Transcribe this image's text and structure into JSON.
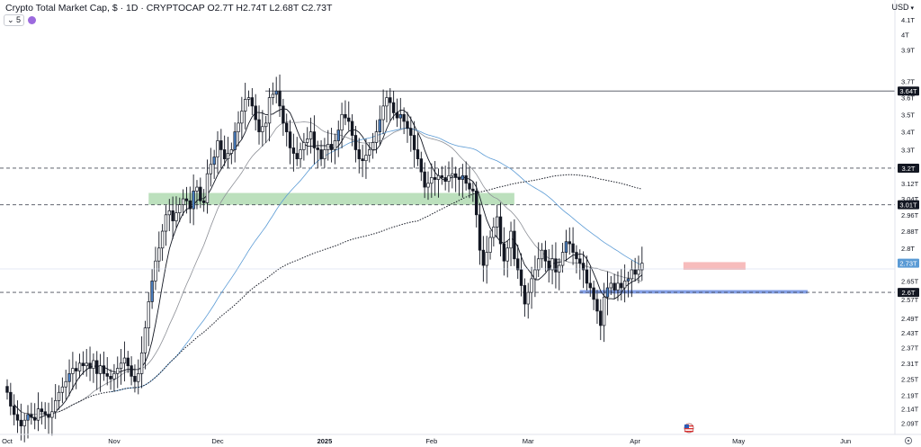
{
  "header": {
    "title": "Crypto Total Market Cap, $ · 1D · CRYPTOCAP",
    "ohlc": "O2.7T H2.74T L2.68T C2.73T"
  },
  "indicator_badge": {
    "label": "5"
  },
  "currency": {
    "label": "USD",
    "chevron": "▾"
  },
  "settings_icon": "gear-icon",
  "colors": {
    "up": "#26a69a",
    "down": "#131722",
    "up_fill": "#4a7fc1",
    "ma_blue": "#5b9bd5",
    "ma_dark": "#131722",
    "ma_gray": "#8c8f96",
    "green_zone": "#a5d6a7",
    "red_zone": "#f4a6a6",
    "blue_zone": "#6f8fe3",
    "last_price": "#5b9bd5"
  },
  "chart_data": {
    "type": "candlestick",
    "title": "Crypto Total Market Cap, $ · 1D · CRYPTOCAP",
    "x_ticks": [
      "Oct",
      "Nov",
      "Dec",
      "2025",
      "Feb",
      "Mar",
      "Apr",
      "May",
      "Jun"
    ],
    "y_ticks": [
      "4.1T",
      "4T",
      "3.9T",
      "3.7T",
      "3.6T",
      "3.5T",
      "3.4T",
      "3.3T",
      "3.12T",
      "3.04T",
      "2.96T",
      "2.88T",
      "2.8T",
      "2.65T",
      "2.57T",
      "2.49T",
      "2.43T",
      "2.37T",
      "2.31T",
      "2.25T",
      "2.19T",
      "2.14T",
      "2.09T"
    ],
    "scale": "log",
    "y_range_T": [
      2.06,
      4.2
    ],
    "x_range": [
      "2024-10-01",
      "2025-06-14"
    ],
    "horizontal_levels_T": [
      {
        "value": 3.64,
        "label": "3.64T",
        "style": "solid"
      },
      {
        "value": 3.2,
        "label": "3.2T",
        "style": "dashed"
      },
      {
        "value": 3.01,
        "label": "3.01T",
        "style": "dashed"
      },
      {
        "value": 2.6,
        "label": "2.6T",
        "style": "dashed"
      }
    ],
    "last_price": {
      "value": 2.73,
      "label": "2.73T"
    },
    "zones": [
      {
        "name": "green",
        "from": "2024-11-11",
        "to": "2025-02-25",
        "low_T": 3.01,
        "high_T": 3.07
      },
      {
        "name": "red",
        "from": "2025-04-15",
        "to": "2025-05-03",
        "low_T": 2.7,
        "high_T": 2.735
      },
      {
        "name": "blue",
        "from": "2025-03-16",
        "to": "2025-05-21",
        "low_T": 2.595,
        "high_T": 2.61
      }
    ],
    "closes_T": [
      2.2,
      2.15,
      2.12,
      2.1,
      2.08,
      2.1,
      2.12,
      2.11,
      2.1,
      2.14,
      2.13,
      2.12,
      2.11,
      2.13,
      2.17,
      2.2,
      2.22,
      2.24,
      2.27,
      2.29,
      2.28,
      2.31,
      2.3,
      2.31,
      2.29,
      2.32,
      2.27,
      2.3,
      2.27,
      2.26,
      2.25,
      2.27,
      2.29,
      2.31,
      2.33,
      2.3,
      2.26,
      2.24,
      2.27,
      2.35,
      2.45,
      2.56,
      2.65,
      2.74,
      2.8,
      2.88,
      2.96,
      2.98,
      2.93,
      2.97,
      3.01,
      3.04,
      3.03,
      2.99,
      3.08,
      3.1,
      3.03,
      3.02,
      3.17,
      3.22,
      3.26,
      3.35,
      3.3,
      3.25,
      3.28,
      3.3,
      3.4,
      3.45,
      3.52,
      3.59,
      3.6,
      3.55,
      3.47,
      3.4,
      3.43,
      3.45,
      3.6,
      3.62,
      3.64,
      3.55,
      3.45,
      3.4,
      3.31,
      3.28,
      3.25,
      3.3,
      3.34,
      3.36,
      3.4,
      3.31,
      3.3,
      3.25,
      3.3,
      3.33,
      3.3,
      3.35,
      3.41,
      3.5,
      3.48,
      3.46,
      3.38,
      3.3,
      3.25,
      3.24,
      3.27,
      3.3,
      3.34,
      3.4,
      3.47,
      3.55,
      3.6,
      3.57,
      3.51,
      3.48,
      3.5,
      3.46,
      3.42,
      3.38,
      3.3,
      3.25,
      3.18,
      3.1,
      3.12,
      3.15,
      3.14,
      3.16,
      3.15,
      3.13,
      3.16,
      3.17,
      3.15,
      3.14,
      3.16,
      3.12,
      3.09,
      3.08,
      2.96,
      2.79,
      2.72,
      2.78,
      2.85,
      2.9,
      2.95,
      2.82,
      2.74,
      2.8,
      2.88,
      2.75,
      2.7,
      2.63,
      2.55,
      2.6,
      2.66,
      2.7,
      2.75,
      2.79,
      2.74,
      2.7,
      2.75,
      2.69,
      2.72,
      2.78,
      2.83,
      2.82,
      2.78,
      2.75,
      2.73,
      2.7,
      2.64,
      2.62,
      2.57,
      2.52,
      2.46,
      2.58,
      2.62,
      2.64,
      2.61,
      2.64,
      2.62,
      2.65,
      2.66,
      2.7,
      2.68,
      2.7,
      2.73
    ]
  }
}
